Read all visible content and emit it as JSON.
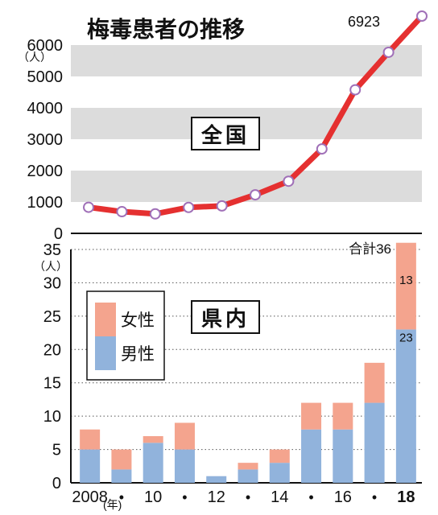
{
  "title": "梅毒患者の推移",
  "chart_data": [
    {
      "type": "line",
      "panel_label": "全国",
      "unit_label": "（人）",
      "x": [
        2008,
        2009,
        2010,
        2011,
        2012,
        2013,
        2014,
        2015,
        2016,
        2017,
        2018
      ],
      "series": [
        {
          "values": [
            831,
            691,
            621,
            827,
            875,
            1228,
            1661,
            2690,
            4575,
            5770,
            6923
          ],
          "color": "#e53030"
        }
      ],
      "end_label": "6923",
      "yticks": [
        0,
        1000,
        2000,
        3000,
        4000,
        5000,
        6000
      ],
      "ylim": [
        0,
        7000
      ],
      "bands": [
        [
          1000,
          2000
        ],
        [
          3000,
          4000
        ],
        [
          5000,
          6000
        ]
      ],
      "band_color": "#dcdcdc"
    },
    {
      "type": "bar",
      "stacked": true,
      "panel_label": "県内",
      "unit_label": "（人）",
      "x_unit_label": "(年)",
      "categories": [
        2008,
        2009,
        2010,
        2011,
        2012,
        2013,
        2014,
        2015,
        2016,
        2017,
        2018
      ],
      "xtick_labels": [
        "2008",
        "•",
        "10",
        "•",
        "12",
        "•",
        "14",
        "•",
        "16",
        "•",
        "18"
      ],
      "series": [
        {
          "name": "男性",
          "values": [
            5,
            2,
            6,
            5,
            1,
            2,
            3,
            8,
            8,
            12,
            23
          ],
          "color": "#91b3dc"
        },
        {
          "name": "女性",
          "values": [
            3,
            3,
            1,
            4,
            0,
            1,
            2,
            4,
            4,
            6,
            13
          ],
          "color": "#f4a48e"
        }
      ],
      "data_labels": {
        "male_2018": "23",
        "female_2018": "13"
      },
      "total_label": "合計36",
      "yticks": [
        0,
        5,
        10,
        15,
        20,
        25,
        30,
        35
      ],
      "ylim": [
        0,
        35
      ],
      "grid": "dotted",
      "legend_position": "top-left"
    }
  ]
}
